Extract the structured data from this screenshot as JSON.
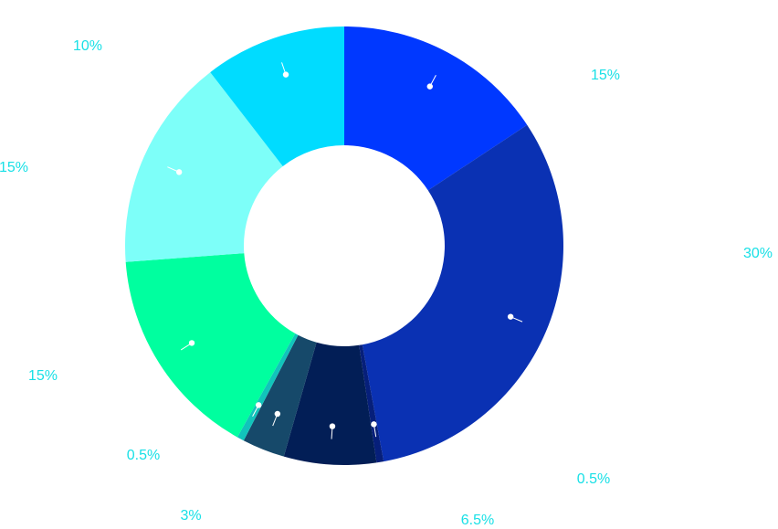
{
  "chart_data": {
    "type": "pie",
    "title": "",
    "legend": "none",
    "slices": [
      {
        "label": "15%",
        "value": 15,
        "color": "#0038ff"
      },
      {
        "label": "30%",
        "value": 30,
        "color": "#0a31b3"
      },
      {
        "label": "0.5%",
        "value": 0.5,
        "color": "#061f7a"
      },
      {
        "label": "6.5%",
        "value": 6.5,
        "color": "#021e56"
      },
      {
        "label": "3%",
        "value": 3,
        "color": "#16496a"
      },
      {
        "label": "0.5%",
        "value": 0.5,
        "color": "#11c4bb"
      },
      {
        "label": "15%",
        "value": 15,
        "color": "#00ff9f"
      },
      {
        "label": "15%",
        "value": 15,
        "color": "#7dfff9"
      },
      {
        "label": "10%",
        "value": 10,
        "color": "#00dcff"
      }
    ]
  }
}
